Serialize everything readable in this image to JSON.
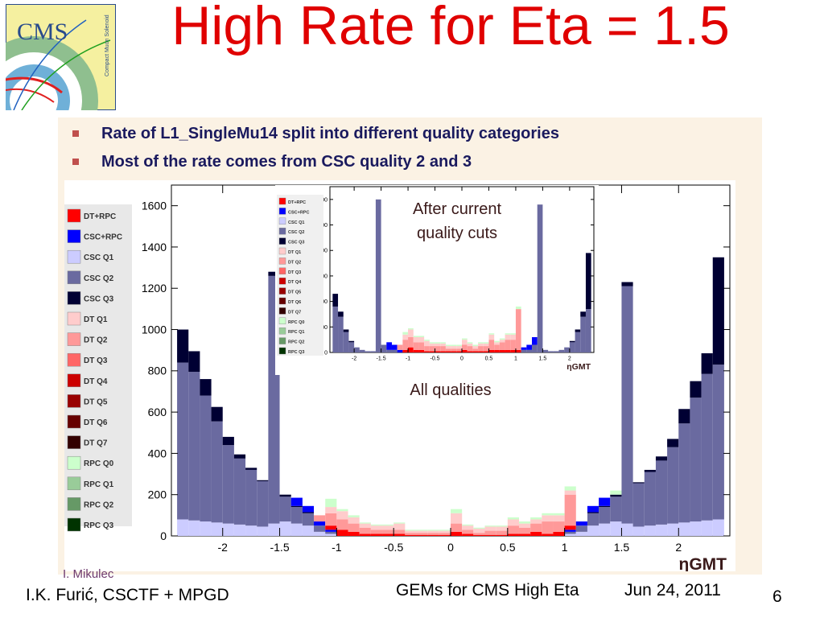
{
  "slide": {
    "title": "High Rate for Eta = 1.5",
    "logo_text": "CMS",
    "logo_subtext": "Compact Muon Solenoid",
    "bullets": [
      "Rate of L1_SingleMu14 split into different quality categories",
      "Most of the rate comes from CSC quality 2 and 3"
    ],
    "byline": "I. Mikulec",
    "footer_left": "I.K. Furić, CSCTF + MPGD",
    "footer_center": "GEMs for CMS High Eta",
    "footer_date": "Jun 24, 2011",
    "page_number": "6"
  },
  "chart_data": [
    {
      "type": "stacked-histogram",
      "annotation": "All qualities",
      "xlabel": "ηGMT",
      "xlim": [
        -2.45,
        2.45
      ],
      "ylim": [
        0,
        1700
      ],
      "x_ticks": [
        "-2",
        "-1.5",
        "-1",
        "-0.5",
        "0",
        "0.5",
        "1",
        "1.5",
        "2"
      ],
      "y_ticks": [
        "0",
        "200",
        "400",
        "600",
        "800",
        "1000",
        "1200",
        "1400",
        "1600"
      ],
      "legend_position": "left",
      "legend": [
        {
          "name": "DT+RPC",
          "color": "#ff0000"
        },
        {
          "name": "CSC+RPC",
          "color": "#0000ff"
        },
        {
          "name": "CSC Q1",
          "color": "#ccccff"
        },
        {
          "name": "CSC Q2",
          "color": "#6a6aa0"
        },
        {
          "name": "CSC Q3",
          "color": "#000033"
        },
        {
          "name": "DT Q1",
          "color": "#ffcccc"
        },
        {
          "name": "DT Q2",
          "color": "#ff9999"
        },
        {
          "name": "DT Q3",
          "color": "#ff6666"
        },
        {
          "name": "DT Q4",
          "color": "#cc0000"
        },
        {
          "name": "DT Q5",
          "color": "#990000"
        },
        {
          "name": "DT Q6",
          "color": "#660000"
        },
        {
          "name": "DT Q7",
          "color": "#330000"
        },
        {
          "name": "RPC Q0",
          "color": "#ccffcc"
        },
        {
          "name": "RPC Q1",
          "color": "#99cc99"
        },
        {
          "name": "RPC Q2",
          "color": "#669966"
        },
        {
          "name": "RPC Q3",
          "color": "#003300"
        }
      ],
      "bin_centers": [
        -2.35,
        -2.25,
        -2.15,
        -2.05,
        -1.95,
        -1.85,
        -1.75,
        -1.65,
        -1.55,
        -1.45,
        -1.35,
        -1.25,
        -1.15,
        -1.05,
        -0.95,
        -0.85,
        -0.75,
        -0.65,
        -0.55,
        -0.45,
        -0.35,
        -0.25,
        -0.15,
        -0.05,
        0.05,
        0.15,
        0.25,
        0.35,
        0.45,
        0.55,
        0.65,
        0.75,
        0.85,
        0.95,
        1.05,
        1.15,
        1.25,
        1.35,
        1.45,
        1.55,
        1.65,
        1.75,
        1.85,
        1.95,
        2.05,
        2.15,
        2.25,
        2.35
      ],
      "stacks": {
        "CSC Q1": [
          80,
          75,
          70,
          65,
          60,
          55,
          50,
          45,
          60,
          70,
          60,
          50,
          20,
          10,
          0,
          0,
          0,
          0,
          0,
          0,
          0,
          0,
          0,
          0,
          0,
          0,
          0,
          0,
          0,
          0,
          0,
          0,
          0,
          0,
          10,
          20,
          50,
          60,
          70,
          60,
          45,
          50,
          55,
          60,
          65,
          70,
          75,
          80
        ],
        "CSC Q2": [
          760,
          720,
          610,
          490,
          380,
          320,
          270,
          220,
          1200,
          120,
          80,
          60,
          30,
          10,
          0,
          0,
          0,
          0,
          0,
          0,
          0,
          0,
          0,
          0,
          0,
          0,
          0,
          0,
          0,
          0,
          0,
          0,
          0,
          0,
          10,
          30,
          60,
          80,
          120,
          1150,
          210,
          260,
          310,
          370,
          480,
          600,
          710,
          750
        ],
        "CSC Q3": [
          160,
          100,
          80,
          70,
          40,
          20,
          10,
          5,
          20,
          10,
          5,
          5,
          0,
          0,
          0,
          0,
          0,
          0,
          0,
          0,
          0,
          0,
          0,
          0,
          0,
          0,
          0,
          0,
          0,
          0,
          0,
          0,
          0,
          0,
          0,
          0,
          5,
          5,
          10,
          20,
          5,
          10,
          20,
          40,
          70,
          80,
          100,
          520
        ],
        "CSC+RPC": [
          0,
          0,
          0,
          0,
          0,
          0,
          0,
          0,
          0,
          0,
          40,
          30,
          20,
          10,
          0,
          0,
          0,
          0,
          0,
          0,
          0,
          0,
          0,
          0,
          0,
          0,
          0,
          0,
          0,
          0,
          0,
          0,
          0,
          0,
          10,
          20,
          30,
          40,
          0,
          0,
          0,
          0,
          0,
          0,
          0,
          0,
          0,
          0
        ],
        "DT+RPC": [
          0,
          0,
          0,
          0,
          0,
          0,
          0,
          0,
          0,
          0,
          0,
          0,
          0,
          20,
          30,
          20,
          10,
          10,
          10,
          10,
          5,
          5,
          5,
          5,
          20,
          10,
          5,
          5,
          5,
          10,
          10,
          20,
          10,
          20,
          20,
          0,
          0,
          0,
          0,
          0,
          0,
          0,
          0,
          0,
          0,
          0,
          0,
          0
        ],
        "DT Q2": [
          0,
          0,
          0,
          0,
          0,
          0,
          0,
          0,
          0,
          0,
          0,
          0,
          30,
          60,
          50,
          40,
          30,
          20,
          20,
          20,
          10,
          10,
          10,
          10,
          40,
          20,
          10,
          20,
          20,
          40,
          30,
          40,
          60,
          50,
          150,
          0,
          0,
          0,
          0,
          0,
          0,
          0,
          0,
          0,
          0,
          0,
          0,
          0
        ],
        "DT Q1": [
          0,
          0,
          0,
          0,
          0,
          0,
          0,
          0,
          0,
          0,
          0,
          0,
          0,
          30,
          40,
          30,
          20,
          20,
          20,
          30,
          10,
          10,
          10,
          10,
          50,
          20,
          20,
          20,
          20,
          30,
          20,
          20,
          30,
          30,
          20,
          0,
          0,
          0,
          0,
          0,
          0,
          0,
          0,
          0,
          0,
          0,
          0,
          0
        ],
        "RPC Q0": [
          0,
          0,
          0,
          0,
          0,
          0,
          0,
          0,
          0,
          0,
          0,
          0,
          0,
          40,
          10,
          10,
          5,
          5,
          5,
          5,
          5,
          5,
          5,
          5,
          20,
          5,
          5,
          5,
          5,
          10,
          10,
          10,
          10,
          10,
          20,
          0,
          0,
          0,
          20,
          0,
          0,
          0,
          0,
          0,
          0,
          0,
          0,
          0
        ]
      }
    },
    {
      "type": "stacked-histogram",
      "annotation": "After current quality cuts",
      "xlabel": "ηGMT",
      "xlim": [
        -2.45,
        2.45
      ],
      "ylim": [
        0,
        650
      ],
      "x_ticks": [
        "-2",
        "-1.5",
        "-1",
        "-0.5",
        "0",
        "0.5",
        "1",
        "1.5",
        "2"
      ],
      "y_ticks": [
        "0",
        "100",
        "200",
        "300",
        "400",
        "500",
        "600"
      ],
      "bin_centers": [
        -2.35,
        -2.25,
        -2.15,
        -2.05,
        -1.95,
        -1.85,
        -1.75,
        -1.65,
        -1.55,
        -1.45,
        -1.35,
        -1.25,
        -1.15,
        -1.05,
        -0.95,
        -0.85,
        -0.75,
        -0.65,
        -0.55,
        -0.45,
        -0.35,
        -0.25,
        -0.15,
        -0.05,
        0.05,
        0.15,
        0.25,
        0.35,
        0.45,
        0.55,
        0.65,
        0.75,
        0.85,
        0.95,
        1.05,
        1.15,
        1.25,
        1.35,
        1.45,
        1.55,
        1.65,
        1.75,
        1.85,
        1.95,
        2.05,
        2.15,
        2.25,
        2.35
      ],
      "stacks": {
        "CSC Q2": [
          180,
          140,
          80,
          40,
          20,
          10,
          5,
          5,
          600,
          30,
          10,
          10,
          0,
          0,
          0,
          0,
          0,
          0,
          0,
          0,
          0,
          0,
          0,
          0,
          0,
          0,
          0,
          0,
          0,
          0,
          0,
          0,
          0,
          0,
          0,
          10,
          10,
          30,
          580,
          10,
          5,
          5,
          10,
          20,
          40,
          80,
          140,
          170
        ],
        "CSC Q3": [
          50,
          20,
          10,
          5,
          0,
          0,
          0,
          0,
          0,
          0,
          0,
          0,
          0,
          0,
          0,
          0,
          0,
          0,
          0,
          0,
          0,
          0,
          0,
          0,
          0,
          0,
          0,
          0,
          0,
          0,
          0,
          0,
          0,
          0,
          0,
          0,
          0,
          0,
          0,
          0,
          0,
          0,
          0,
          0,
          5,
          10,
          20,
          220
        ],
        "CSC+RPC": [
          0,
          0,
          0,
          0,
          0,
          0,
          0,
          0,
          0,
          0,
          30,
          20,
          10,
          0,
          0,
          0,
          0,
          0,
          0,
          0,
          0,
          0,
          0,
          0,
          0,
          0,
          0,
          0,
          0,
          0,
          0,
          0,
          0,
          0,
          0,
          10,
          20,
          30,
          0,
          0,
          0,
          0,
          0,
          0,
          0,
          0,
          0,
          0
        ],
        "DT+RPC": [
          0,
          0,
          0,
          0,
          0,
          0,
          0,
          0,
          0,
          0,
          0,
          0,
          0,
          10,
          20,
          10,
          10,
          5,
          5,
          5,
          5,
          5,
          5,
          5,
          10,
          5,
          5,
          5,
          5,
          10,
          10,
          10,
          10,
          10,
          10,
          0,
          0,
          0,
          0,
          0,
          0,
          0,
          0,
          0,
          0,
          0,
          0,
          0
        ],
        "DT Q2": [
          0,
          0,
          0,
          0,
          0,
          0,
          0,
          0,
          0,
          0,
          0,
          0,
          20,
          40,
          40,
          30,
          30,
          20,
          20,
          20,
          20,
          10,
          10,
          10,
          20,
          20,
          10,
          20,
          20,
          40,
          20,
          30,
          40,
          40,
          160,
          0,
          0,
          0,
          0,
          0,
          0,
          0,
          0,
          0,
          0,
          0,
          0,
          0
        ],
        "DT Q1": [
          0,
          0,
          0,
          0,
          0,
          0,
          0,
          0,
          0,
          0,
          0,
          0,
          0,
          20,
          30,
          20,
          20,
          20,
          10,
          10,
          10,
          10,
          10,
          10,
          20,
          10,
          10,
          10,
          10,
          20,
          10,
          10,
          20,
          20,
          0,
          0,
          0,
          0,
          0,
          0,
          0,
          0,
          0,
          0,
          0,
          0,
          0,
          0
        ],
        "RPC Q0": [
          0,
          0,
          0,
          0,
          0,
          0,
          0,
          0,
          0,
          0,
          0,
          0,
          0,
          10,
          5,
          5,
          5,
          5,
          5,
          5,
          5,
          5,
          5,
          5,
          5,
          5,
          5,
          5,
          5,
          5,
          5,
          5,
          5,
          5,
          10,
          0,
          0,
          0,
          0,
          0,
          0,
          0,
          0,
          0,
          0,
          0,
          0,
          0
        ]
      }
    }
  ]
}
